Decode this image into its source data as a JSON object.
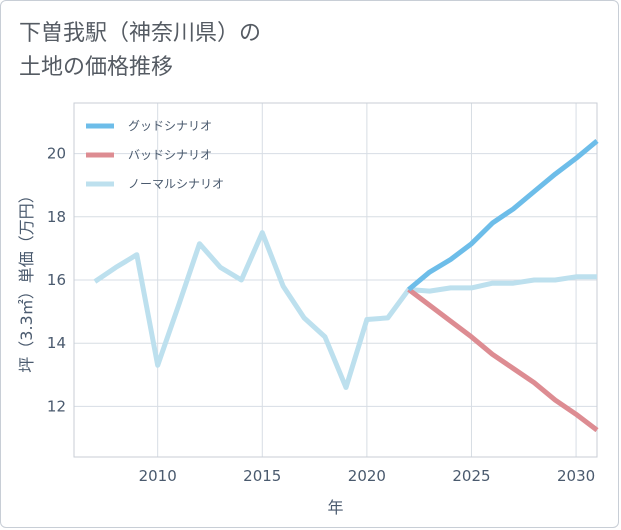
{
  "title_lines": [
    "下曽我駅（神奈川県）の",
    "土地の価格推移"
  ],
  "chart_data": {
    "type": "line",
    "title": "下曽我駅（神奈川県）の土地の価格推移",
    "xlabel": "年",
    "ylabel": "坪（3.3㎡）単価（万円）",
    "xlim": [
      2006,
      2031
    ],
    "ylim": [
      10.4,
      21.6
    ],
    "xticks": [
      2010,
      2015,
      2020,
      2025,
      2030
    ],
    "yticks": [
      12,
      14,
      16,
      18,
      20
    ],
    "grid": true,
    "legend_position": "top-left",
    "series": [
      {
        "name": "グッドシナリオ",
        "color": "#6dbde9",
        "x": [
          2022,
          2023,
          2024,
          2025,
          2026,
          2027,
          2028,
          2029,
          2030,
          2031
        ],
        "y": [
          15.7,
          16.25,
          16.65,
          17.15,
          17.8,
          18.25,
          18.8,
          19.35,
          19.85,
          20.4
        ]
      },
      {
        "name": "バッドシナリオ",
        "color": "#dd8c92",
        "x": [
          2022,
          2023,
          2024,
          2025,
          2026,
          2027,
          2028,
          2029,
          2030,
          2031
        ],
        "y": [
          15.7,
          15.2,
          14.7,
          14.2,
          13.65,
          13.2,
          12.75,
          12.2,
          11.75,
          11.25
        ]
      },
      {
        "name": "ノーマルシナリオ",
        "color": "#bde0ee",
        "x": [
          2007,
          2008,
          2009,
          2010,
          2011,
          2012,
          2013,
          2014,
          2015,
          2016,
          2017,
          2018,
          2019,
          2020,
          2021,
          2022,
          2023,
          2024,
          2025,
          2026,
          2027,
          2028,
          2029,
          2030,
          2031
        ],
        "y": [
          15.95,
          16.4,
          16.8,
          13.3,
          15.2,
          17.15,
          16.4,
          16.0,
          17.5,
          15.8,
          14.8,
          14.2,
          12.6,
          14.75,
          14.8,
          15.7,
          15.65,
          15.75,
          15.75,
          15.9,
          15.9,
          16.0,
          16.0,
          16.1,
          16.1
        ]
      }
    ]
  }
}
